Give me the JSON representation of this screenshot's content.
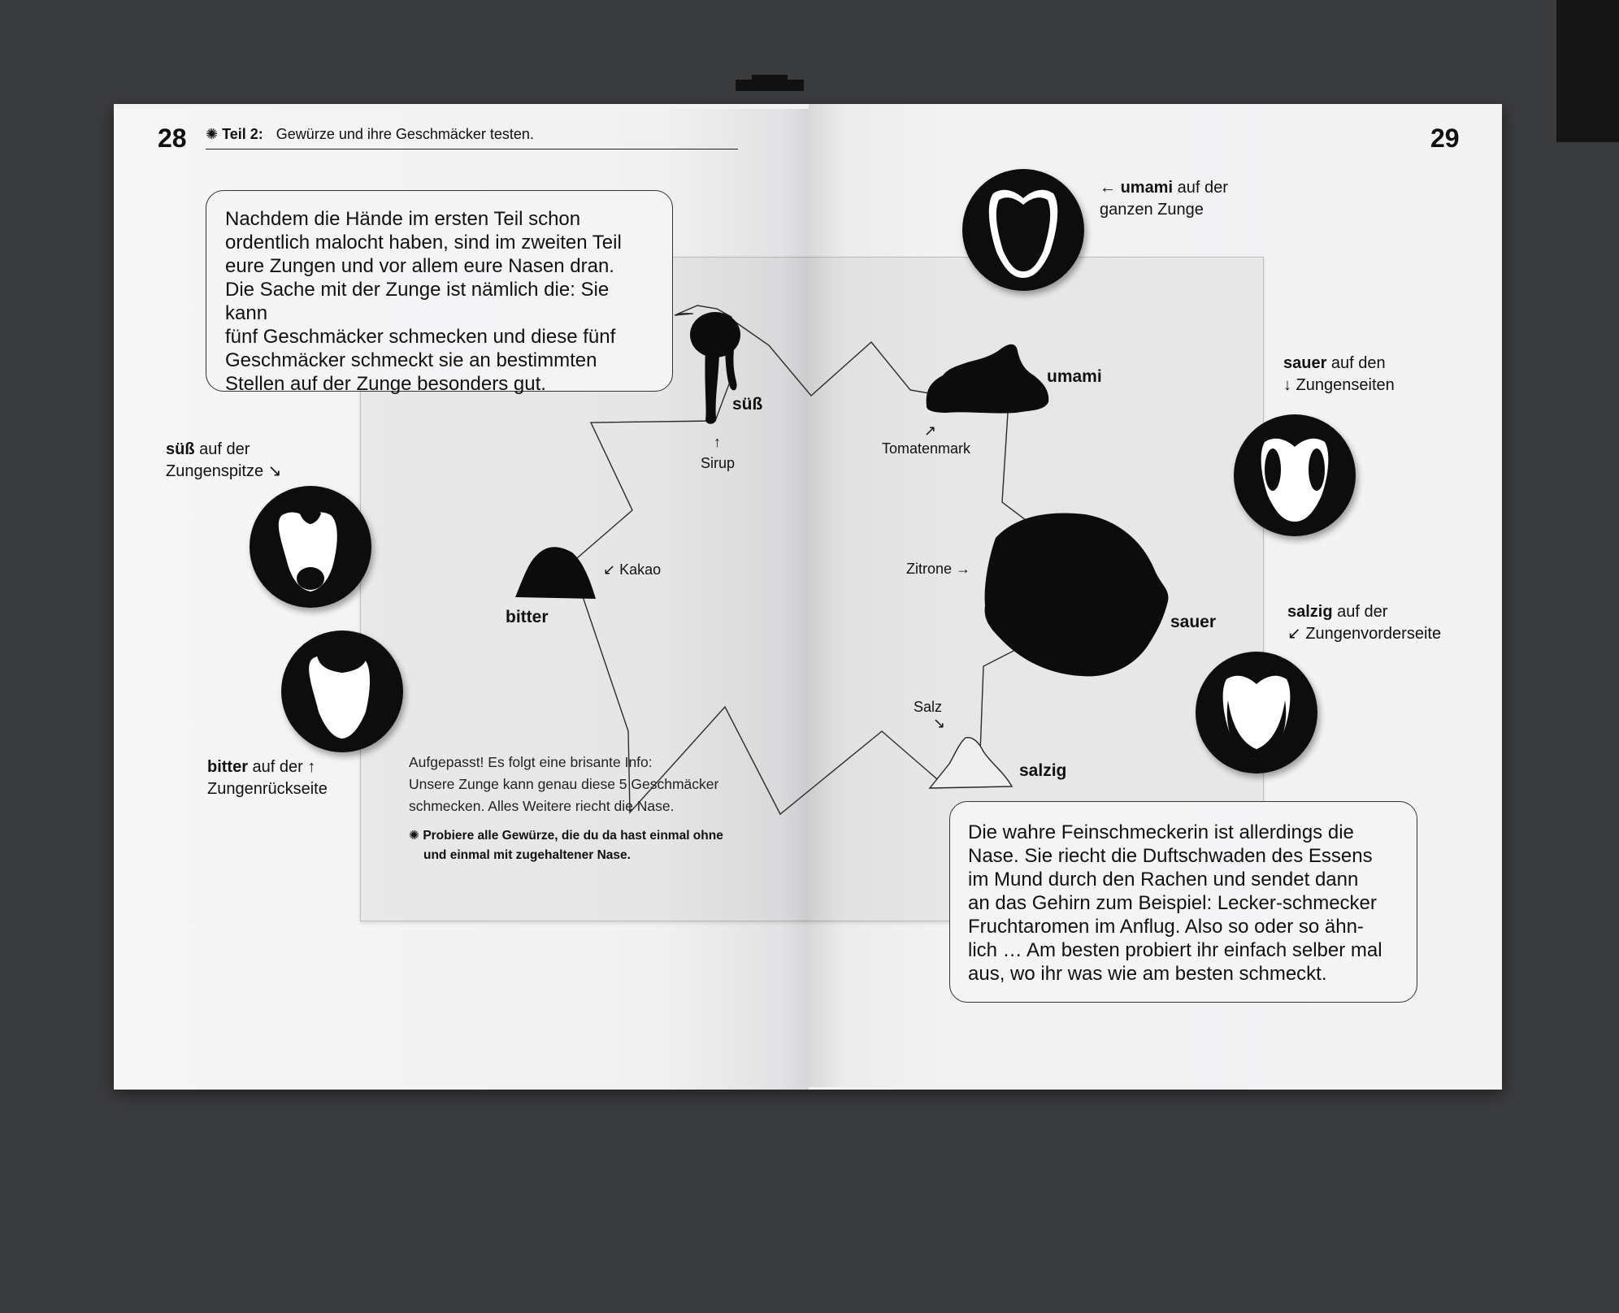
{
  "header": {
    "page_left": "28",
    "star": "✺",
    "part": "Teil 2:",
    "title": "Gewürze und ihre Geschmäcker testen.",
    "page_right": "29"
  },
  "intro_box": {
    "lines": [
      "Nachdem die Hände im ersten Teil schon",
      "ordentlich malocht haben, sind im zweiten Teil",
      "eure Zungen und vor allem eure Nasen dran.",
      "Die Sache mit der Zunge ist nämlich die: Sie kann",
      "fünf Geschmäcker schmecken und diese fünf",
      "Geschmäcker schmeckt sie an bestimmten",
      "Stellen auf der Zunge besonders gut."
    ]
  },
  "tongue_labels": {
    "suess": {
      "bold": "süß",
      "rest1": " auf der",
      "line2": "Zungenspitze ↘"
    },
    "bitter": {
      "bold": "bitter",
      "rest1": " auf der ↑",
      "line2": "Zungenrückseite"
    },
    "umami": {
      "arrow": "← ",
      "bold": "umami",
      "rest1": " auf der",
      "line2": "ganzen Zunge"
    },
    "sauer": {
      "bold": "sauer",
      "rest1": " auf den",
      "line2": "↓ Zungenseiten"
    },
    "salzig": {
      "bold": "salzig",
      "rest1": " auf der",
      "line2": "↙ Zungenvorderseite"
    }
  },
  "map": {
    "suess": {
      "taste": "süß",
      "arrow": "↑",
      "item": "Sirup"
    },
    "bitter": {
      "taste": "bitter",
      "item": "↙ Kakao"
    },
    "umami": {
      "taste": "umami",
      "arrow": "↗",
      "item": "Tomatenmark"
    },
    "sauer": {
      "taste": "sauer",
      "item": "Zitrone →"
    },
    "salzig": {
      "taste": "salzig",
      "item": "Salz",
      "arrow": "↘"
    }
  },
  "note": {
    "lines": [
      "Aufgepasst! Es folgt eine brisante Info:",
      "Unsere Zunge kann genau diese 5 Geschmäcker",
      "schmecken. Alles Weitere riecht die Nase."
    ],
    "star": "✺",
    "tip_lines": [
      "Probiere alle Gewürze, die du da hast einmal ohne",
      "und einmal mit zugehaltener Nase."
    ]
  },
  "outro_box": {
    "lines": [
      "Die wahre Feinschmeckerin ist allerdings die",
      "Nase. Sie riecht die Duftschwaden des Essens",
      "im Mund durch den Rachen und sendet dann",
      "an das Gehirn zum Beispiel: Lecker-schmecker",
      "Fruchtaromen im Anflug. Also so oder so ähn-",
      "lich … Am besten probiert ihr einfach selber mal",
      "aus, wo ihr was wie am besten schmeckt."
    ]
  }
}
